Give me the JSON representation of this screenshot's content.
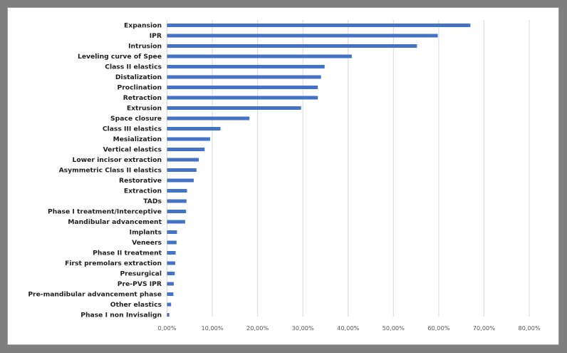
{
  "chart_data": {
    "type": "bar",
    "orientation": "horizontal",
    "categories": [
      "Expansion",
      "IPR",
      "Intrusion",
      "Leveling curve of Spee",
      "Class II elastics",
      "Distalization",
      "Proclination",
      "Retraction",
      "Extrusion",
      "Space closure",
      "Class III elastics",
      "Mesialization",
      "Vertical elastics",
      "Lower incisor extraction",
      "Asymmetric Class II elastics",
      "Restorative",
      "Extraction",
      "TADs",
      "Phase I treatment/Interceptive",
      "Mandibular advancement",
      "Implants",
      "Veneers",
      "Phase II treatment",
      "First premolars extraction",
      "Presurgical",
      "Pre-PVS IPR",
      "Pre-mandibular advancement phase",
      "Other elastics",
      "Phase I non Invisalign"
    ],
    "values": [
      67.0,
      59.8,
      55.2,
      40.8,
      34.8,
      34.0,
      33.3,
      33.3,
      29.6,
      18.2,
      11.8,
      9.5,
      8.3,
      7.0,
      6.5,
      5.9,
      4.4,
      4.3,
      4.2,
      4.0,
      2.2,
      2.1,
      1.9,
      1.8,
      1.7,
      1.5,
      1.4,
      0.9,
      0.5
    ],
    "xticks": [
      "0,00%",
      "10,00%",
      "20,00%",
      "30,00%",
      "40,00%",
      "50,00%",
      "60,00%",
      "70,00%",
      "80,00%"
    ],
    "xlim": [
      0,
      80
    ],
    "grid": true,
    "bar_color": "#4472c4",
    "grid_color": "#d9d9d9",
    "title": "",
    "xlabel": "",
    "ylabel": ""
  }
}
